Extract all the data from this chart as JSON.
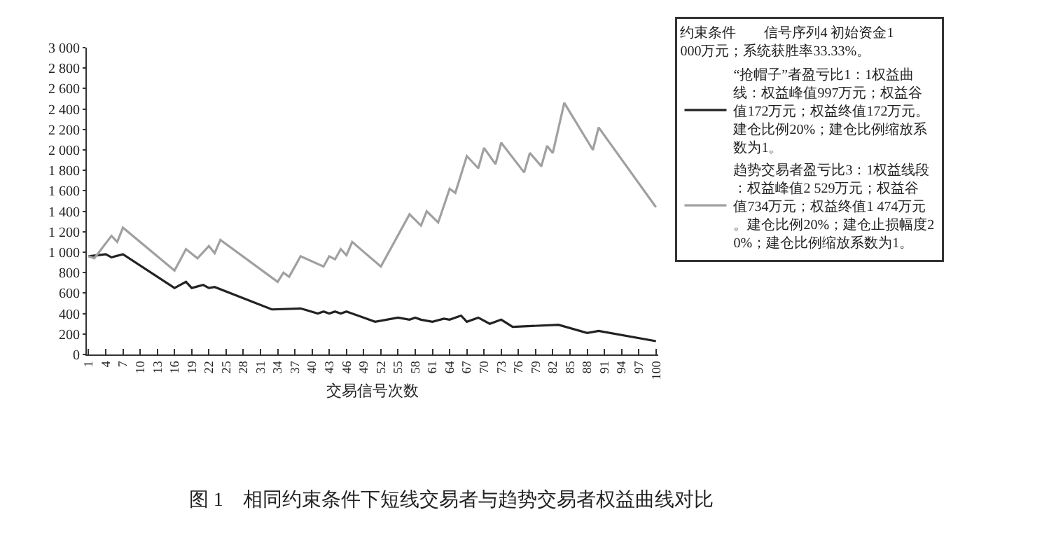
{
  "chart_data": {
    "type": "line",
    "title": "图 1　相同约束条件下短线交易者与趋势交易者权益曲线对比",
    "xlabel": "交易信号次数",
    "legend_title": "约束条件　　信号序列4 初始资金1 000万元；系统获胜率33.33%。",
    "legend": "right",
    "grid": false,
    "marker": "none",
    "line_style": "solid",
    "xlim": [
      0.7,
      100.4
    ],
    "xticks": [
      1,
      4,
      7,
      10,
      13,
      16,
      19,
      22,
      25,
      28,
      31,
      34,
      37,
      40,
      43,
      46,
      49,
      52,
      55,
      58,
      61,
      64,
      67,
      70,
      73,
      76,
      79,
      82,
      85,
      88,
      91,
      94,
      97,
      100
    ],
    "ylim": [
      0,
      3000
    ],
    "yticks": [
      0,
      200,
      400,
      600,
      800,
      {
        "value": 1000,
        "label": "1 000"
      },
      {
        "value": 1200,
        "label": "1 200"
      },
      {
        "value": 1400,
        "label": "1 400"
      },
      {
        "value": 1600,
        "label": "1 600"
      },
      {
        "value": 1800,
        "label": "1 800"
      },
      {
        "value": 2000,
        "label": "2 000"
      },
      {
        "value": 2200,
        "label": "2 200"
      },
      {
        "value": 2400,
        "label": "2 400"
      },
      {
        "value": 2600,
        "label": "2 600"
      },
      {
        "value": 2800,
        "label": "2 800"
      },
      {
        "value": 3000,
        "label": "3 000"
      }
    ],
    "series": [
      {
        "name": "“抢帽子”者盈亏比1：1权益曲线：权益峰值997万元；权益谷值172万元；权益终值172万元。建仓比例20%；建仓比例缩放系数为1。",
        "color": "#222222",
        "x": [
          1,
          4,
          5,
          7,
          16,
          18,
          19,
          21,
          22,
          23,
          33,
          38,
          41,
          42,
          43,
          44,
          45,
          46,
          51,
          55,
          57,
          58,
          59,
          61,
          63,
          64,
          66,
          67,
          69,
          71,
          73,
          75,
          83,
          88,
          90,
          100
        ],
        "values": [
          960,
          980,
          950,
          980,
          650,
          710,
          650,
          680,
          650,
          660,
          440,
          450,
          400,
          420,
          400,
          420,
          400,
          420,
          320,
          360,
          340,
          360,
          340,
          320,
          350,
          340,
          380,
          320,
          360,
          300,
          340,
          270,
          290,
          210,
          230,
          130
        ]
      },
      {
        "name": "趋势交易者盈亏比3：1权益线段：权益峰值2 529万元；权益谷值734万元；权益终值1 474万元。建仓比例20%；建仓止损幅度20%；建仓比例缩放系数为1。",
        "color": "#a0a0a0",
        "x": [
          1,
          2,
          5,
          6,
          7,
          16,
          18,
          20,
          22,
          23,
          24,
          34,
          35,
          36,
          38,
          42,
          43,
          44,
          45,
          46,
          47,
          52,
          57,
          59,
          60,
          62,
          64,
          65,
          67,
          69,
          70,
          72,
          73,
          77,
          78,
          80,
          81,
          82,
          84,
          89,
          90,
          100
        ],
        "values": [
          960,
          940,
          1160,
          1100,
          1240,
          820,
          1030,
          940,
          1060,
          990,
          1120,
          710,
          800,
          760,
          960,
          860,
          960,
          930,
          1030,
          970,
          1100,
          860,
          1370,
          1260,
          1400,
          1290,
          1620,
          1580,
          1940,
          1820,
          2020,
          1860,
          2070,
          1780,
          1970,
          1840,
          2040,
          1970,
          2460,
          2000,
          2220,
          1440
        ]
      }
    ]
  }
}
